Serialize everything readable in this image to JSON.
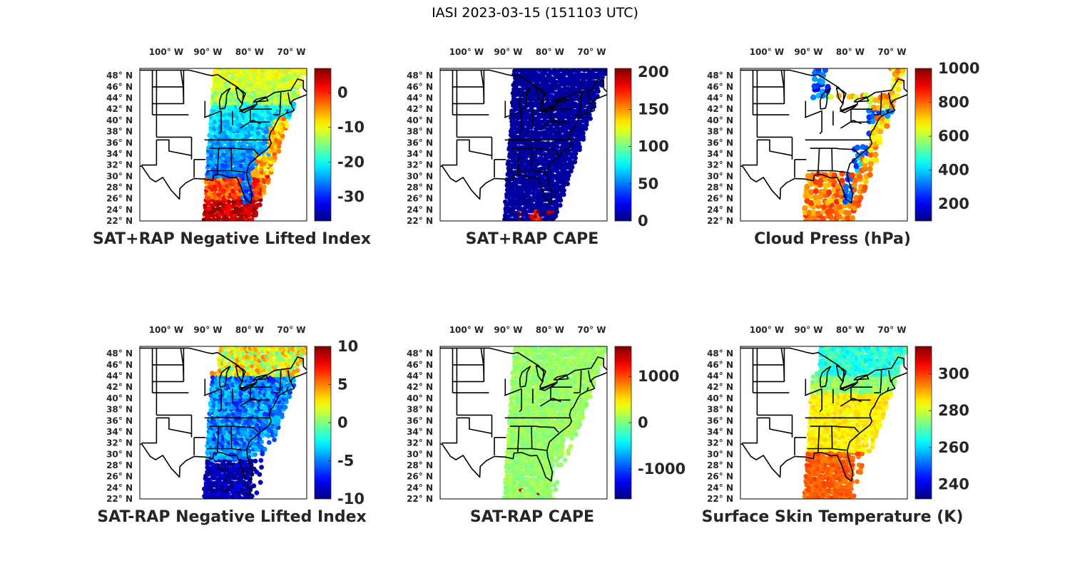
{
  "figure_title": "IASI 2023-03-15 (151103 UTC)",
  "map": {
    "lon_tick_labels": [
      "100° W",
      "90° W",
      "80° W",
      "70° W"
    ],
    "lat_tick_labels": [
      "48° N",
      "46° N",
      "44° N",
      "42° N",
      "40° N",
      "38° N",
      "36° N",
      "34° N",
      "32° N",
      "30° N",
      "28° N",
      "26° N",
      "24° N",
      "22° N"
    ]
  },
  "chart_data": [
    {
      "type": "heatmap",
      "title": "SAT+RAP Negative Lifted Index",
      "colormap": "jet",
      "clim": [
        -37,
        7
      ],
      "colorbar_ticks": [
        0,
        -10,
        -20,
        -30
      ],
      "colorbar_tick_labels": [
        "0",
        "-10",
        "-20",
        "-30"
      ],
      "pattern": "nli_plus",
      "xlabel": "",
      "ylabel": ""
    },
    {
      "type": "heatmap",
      "title": "SAT+RAP CAPE",
      "colormap": "jet",
      "clim": [
        0,
        205
      ],
      "colorbar_ticks": [
        200,
        150,
        100,
        50,
        0
      ],
      "colorbar_tick_labels": [
        "200",
        "150",
        "100",
        "50",
        "0"
      ],
      "pattern": "cape_plus",
      "xlabel": "",
      "ylabel": ""
    },
    {
      "type": "scatter",
      "title": "Cloud Press (hPa)",
      "colormap": "jet",
      "clim": [
        100,
        1000
      ],
      "colorbar_ticks": [
        1000,
        800,
        600,
        400,
        200
      ],
      "colorbar_tick_labels": [
        "1000",
        "800",
        "600",
        "400",
        "200"
      ],
      "pattern": "cloud_press",
      "xlabel": "",
      "ylabel": ""
    },
    {
      "type": "heatmap",
      "title": "SAT-RAP Negative Lifted Index",
      "colormap": "jet",
      "clim": [
        -10,
        10
      ],
      "colorbar_ticks": [
        10,
        5,
        0,
        -5,
        -10
      ],
      "colorbar_tick_labels": [
        "10",
        "5",
        "0",
        "-5",
        "-10"
      ],
      "pattern": "nli_minus",
      "xlabel": "",
      "ylabel": ""
    },
    {
      "type": "heatmap",
      "title": "SAT-RAP CAPE",
      "colormap": "jet",
      "clim": [
        -1650,
        1650
      ],
      "colorbar_ticks": [
        1000,
        0,
        -1000
      ],
      "colorbar_tick_labels": [
        "1000",
        "0",
        "-1000"
      ],
      "pattern": "cape_minus",
      "xlabel": "",
      "ylabel": ""
    },
    {
      "type": "heatmap",
      "title": "Surface Skin Temperature (K)",
      "colormap": "jet",
      "clim": [
        232,
        315
      ],
      "colorbar_ticks": [
        300,
        280,
        260,
        240
      ],
      "colorbar_tick_labels": [
        "300",
        "280",
        "260",
        "240"
      ],
      "pattern": "skin_temp",
      "xlabel": "",
      "ylabel": ""
    }
  ]
}
